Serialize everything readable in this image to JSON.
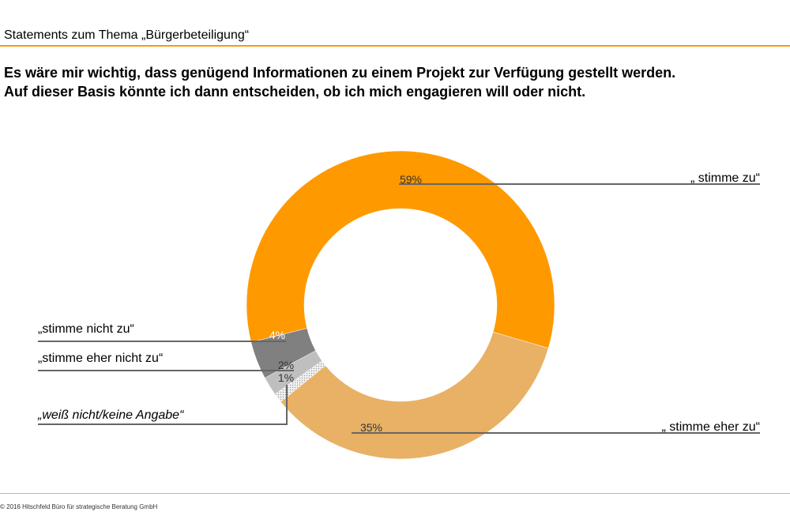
{
  "header": {
    "title": "Statements zum Thema „Bürgerbeteiligung“"
  },
  "question": {
    "line1": "Es wäre mir wichtig, dass genügend Informationen zu einem Projekt zur Verfügung gestellt werden.",
    "line2": "Auf dieser Basis könnte ich dann entscheiden, ob ich mich engagieren will oder nicht."
  },
  "footer": {
    "copyright": "© 2016 Hitschfeld Büro für strategische Beratung GmbH"
  },
  "colors": {
    "accent": "#f39c12"
  },
  "chart_data": {
    "type": "pie",
    "variant": "donut",
    "slices": [
      {
        "name": "„ stimme zu“",
        "value": 59,
        "label": "59%",
        "color": "#ff9900"
      },
      {
        "name": "„ stimme eher zu“",
        "value": 35,
        "label": "35%",
        "color": "#e8b165"
      },
      {
        "name": "„weiß nicht/keine Angabe“",
        "value": 1,
        "label": "1%",
        "color": "#f2f2f2",
        "pattern": "dotted"
      },
      {
        "name": "„stimme eher nicht zu“",
        "value": 2,
        "label": "2%",
        "color": "#bfbfbf"
      },
      {
        "name": "„stimme nicht zu“",
        "value": 4,
        "label": "4%",
        "color": "#808080"
      }
    ]
  }
}
